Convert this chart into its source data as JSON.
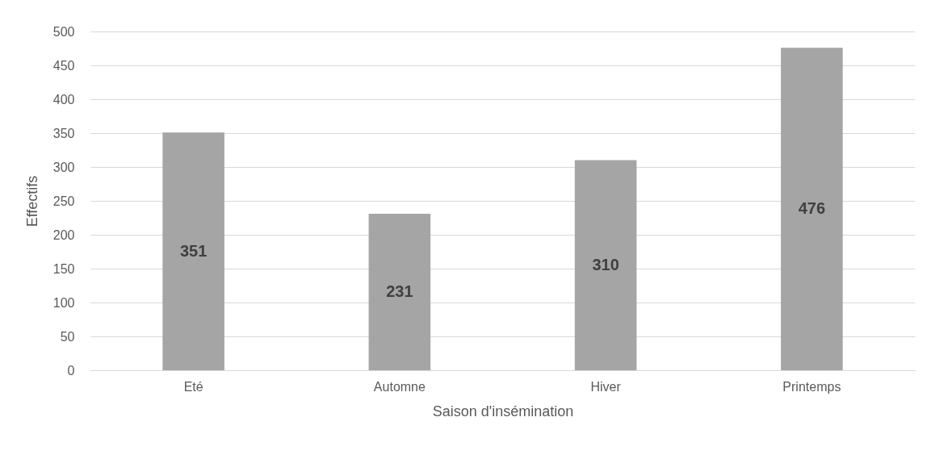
{
  "chart_data": {
    "type": "bar",
    "xlabel": "Saison d'insémination",
    "ylabel": "Effectifs",
    "categories": [
      "Eté",
      "Automne",
      "Hiver",
      "Printemps"
    ],
    "values": [
      351,
      231,
      310,
      476
    ],
    "color": "#a5a5a5",
    "ylim": [
      0,
      500
    ],
    "yticks": [
      0,
      50,
      100,
      150,
      200,
      250,
      300,
      350,
      400,
      450,
      500
    ],
    "grid": "y",
    "data_labels": true
  }
}
